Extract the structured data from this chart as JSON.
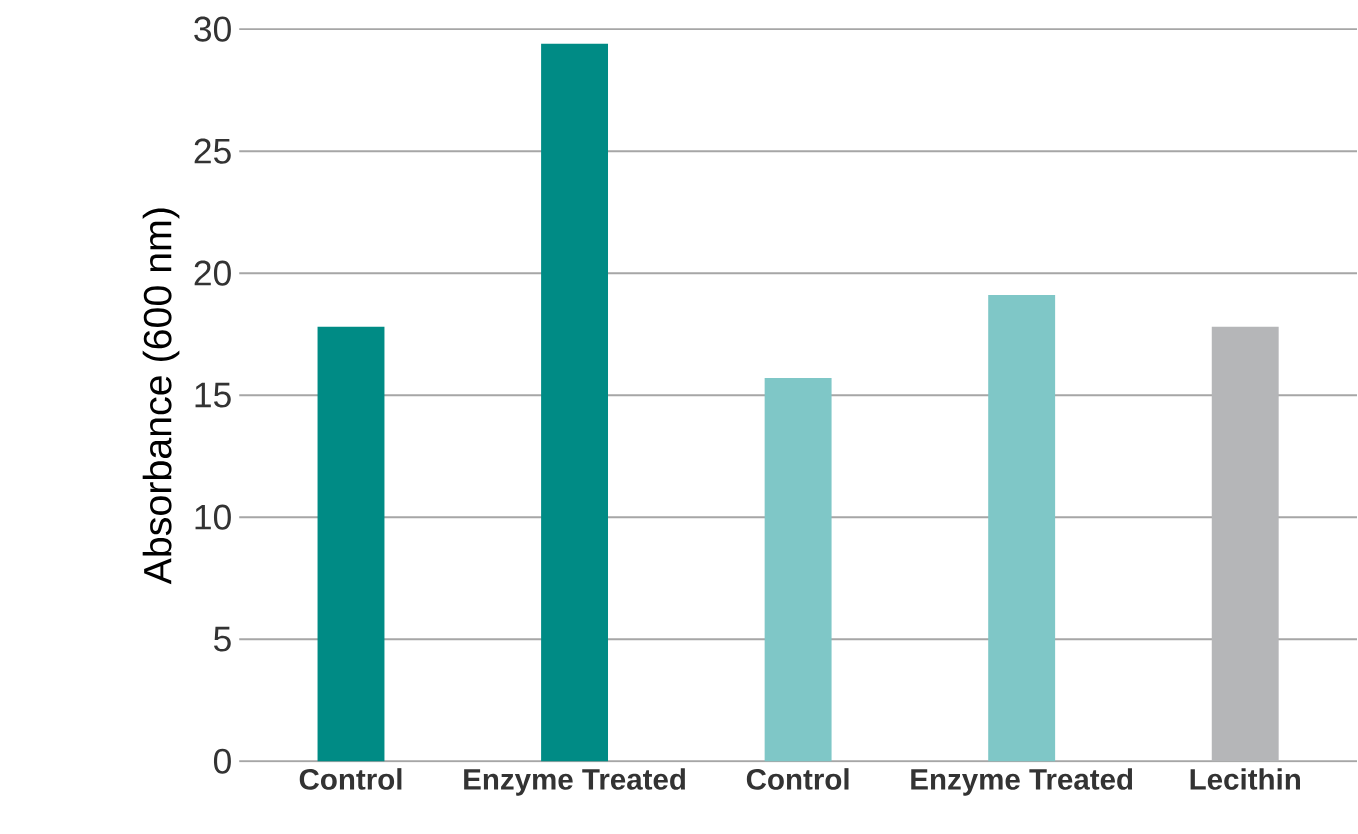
{
  "chart_data": {
    "type": "bar",
    "ylabel": "Absorbance (600 nm)",
    "categories": [
      "Control",
      "Enzyme Treated",
      "Control",
      "Enzyme Treated",
      "Lecithin"
    ],
    "values": [
      17.8,
      29.4,
      15.7,
      19.1,
      17.8
    ],
    "colors": [
      "#008b85",
      "#008b85",
      "#7fc7c7",
      "#7fc7c7",
      "#b5b6b8"
    ],
    "ylim": [
      0,
      30
    ],
    "yticks": [
      0,
      5,
      10,
      15,
      20,
      25,
      30
    ],
    "grid": "y"
  }
}
